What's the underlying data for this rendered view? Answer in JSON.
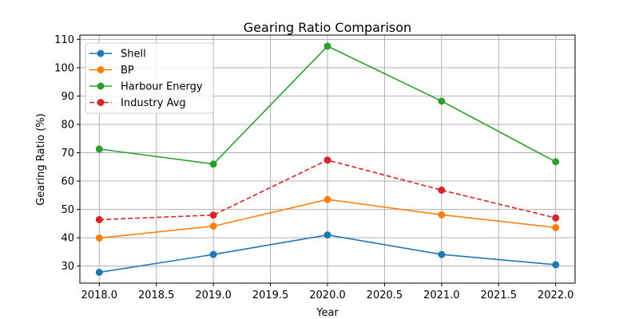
{
  "chart_data": {
    "type": "line",
    "title": "Gearing Ratio Comparison",
    "xlabel": "Year",
    "ylabel": "Gearing Ratio (%)",
    "x": [
      2018,
      2019,
      2020,
      2021,
      2022
    ],
    "xlim": [
      2017.83,
      2022.17
    ],
    "ylim": [
      24,
      111.5
    ],
    "xticks": [
      "2018.0",
      "2018.5",
      "2019.0",
      "2019.5",
      "2020.0",
      "2020.5",
      "2021.0",
      "2021.5",
      "2022.0"
    ],
    "yticks": [
      "30",
      "40",
      "50",
      "60",
      "70",
      "80",
      "90",
      "100",
      "110"
    ],
    "grid": true,
    "legend_position": "top-left",
    "series": [
      {
        "name": "Shell",
        "values": [
          27.8,
          34.1,
          41.0,
          34.1,
          30.5
        ],
        "color": "#1f77b4",
        "dashed": false
      },
      {
        "name": "BP",
        "values": [
          39.9,
          44.1,
          53.5,
          48.1,
          43.6
        ],
        "color": "#ff7f0e",
        "dashed": false
      },
      {
        "name": "Harbour Energy",
        "values": [
          71.3,
          66.0,
          107.6,
          88.2,
          66.8
        ],
        "color": "#2ca02c",
        "dashed": false
      },
      {
        "name": "Industry Avg",
        "values": [
          46.4,
          48.0,
          67.4,
          56.8,
          47.0
        ],
        "color": "#d62728",
        "dashed": true
      }
    ]
  }
}
